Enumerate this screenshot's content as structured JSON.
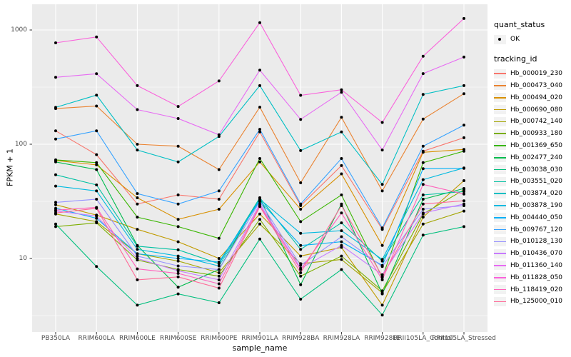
{
  "figure": {
    "y_axis_title": "FPKM + 1",
    "x_axis_title": "sample_name",
    "legend": {
      "quant_status_title": "quant_status",
      "quant_status_item": "OK",
      "tracking_id_title": "tracking_id"
    }
  },
  "colors": {
    "panel_bg": "#EBEBEB",
    "grid": "#FFFFFF",
    "tick_mark": "#333333",
    "tick_text": "#4D4D4D",
    "point": "#000000",
    "legend_key_bg": "#F2F2F2"
  },
  "chart_data": {
    "type": "line",
    "title": "",
    "xlabel": "sample_name",
    "ylabel": "FPKM + 1",
    "y_scale": "log10",
    "ylim": [
      2.3,
      1700
    ],
    "grid": true,
    "legend_position": "right",
    "y_ticks": [
      1000,
      100,
      10
    ],
    "y_tick_labels": [
      "1000",
      "100",
      "10"
    ],
    "y_minor_gridlines": [
      316.2,
      31.62,
      3.162
    ],
    "quant_status": "OK",
    "categories": [
      "PB350LA",
      "RRIM600LA",
      "RRIM600LE",
      "RRIM600SE",
      "RRIM600PE",
      "RRIM901LA",
      "RRIM928BA",
      "RRIM928LA",
      "RRIM928LE",
      "RRII105LA_Control",
      "RRII105LA_Stressed"
    ],
    "series": [
      {
        "name": "Hb_000019_230",
        "color": "#F8766D",
        "values": [
          131,
          81,
          30,
          36,
          33,
          128,
          29,
          65,
          18,
          87,
          114
        ]
      },
      {
        "name": "Hb_000473_040",
        "color": "#EA8331",
        "values": [
          205,
          216,
          100,
          96,
          60,
          211,
          46,
          172,
          39,
          166,
          277
        ]
      },
      {
        "name": "Hb_000494_020",
        "color": "#D89000",
        "values": [
          72,
          66,
          34,
          22,
          27,
          70,
          27,
          55,
          13,
          85,
          90
        ]
      },
      {
        "name": "Hb_000690_080",
        "color": "#C09B00",
        "values": [
          29.5,
          24,
          18,
          14,
          10,
          24.5,
          10.5,
          12.5,
          3.9,
          23,
          48
        ]
      },
      {
        "name": "Hb_000742_140",
        "color": "#A3A500",
        "values": [
          24.5,
          21,
          11,
          9.5,
          7.5,
          20,
          9,
          9.8,
          5,
          20,
          26
        ]
      },
      {
        "name": "Hb_000933_180",
        "color": "#7CAE00",
        "values": [
          19,
          20.5,
          9.7,
          8,
          7,
          22,
          7,
          10.5,
          5.2,
          24.5,
          40
        ]
      },
      {
        "name": "Hb_001369_650",
        "color": "#39B600",
        "values": [
          73,
          69,
          23,
          19,
          15,
          75,
          21,
          36,
          6.8,
          69,
          87
        ]
      },
      {
        "name": "Hb_002477_240",
        "color": "#00BB4E",
        "values": [
          70,
          60,
          13,
          5.6,
          8,
          34,
          5.9,
          30,
          4.9,
          33,
          41
        ]
      },
      {
        "name": "Hb_003038_030",
        "color": "#00BF7D",
        "values": [
          20,
          8.5,
          3.9,
          4.9,
          4.1,
          14.8,
          4.4,
          8,
          3.2,
          16,
          19
        ]
      },
      {
        "name": "Hb_003551_020",
        "color": "#00C1A3",
        "values": [
          54,
          44,
          12.8,
          11.9,
          9,
          34,
          12,
          20.5,
          9.5,
          36,
          38.5
        ]
      },
      {
        "name": "Hb_003874_020",
        "color": "#00BFC4",
        "values": [
          210,
          269,
          89,
          70,
          117,
          326,
          88,
          128,
          44.5,
          273,
          326
        ]
      },
      {
        "name": "Hb_003878_190",
        "color": "#00BAE0",
        "values": [
          43,
          39,
          12,
          10.5,
          8.6,
          33,
          16.6,
          17.5,
          9.8,
          49,
          62
        ]
      },
      {
        "name": "Hb_004440_050",
        "color": "#00B0F6",
        "values": [
          27.5,
          22.5,
          11,
          10,
          9.3,
          32,
          13,
          14,
          8.7,
          61,
          61.5
        ]
      },
      {
        "name": "Hb_009767_120",
        "color": "#35A2FF",
        "values": [
          111,
          131,
          37,
          30,
          39,
          135,
          30,
          75,
          18.5,
          96,
          147
        ]
      },
      {
        "name": "Hb_010128_130",
        "color": "#9590FF",
        "values": [
          31,
          33,
          10.5,
          8.6,
          8,
          31.5,
          8.7,
          15.5,
          8.5,
          27,
          29
        ]
      },
      {
        "name": "Hb_010436_070",
        "color": "#C77CFF",
        "values": [
          26,
          23.5,
          10,
          7.8,
          6.5,
          30,
          8.2,
          13,
          7.2,
          25,
          30
        ]
      },
      {
        "name": "Hb_011360_140",
        "color": "#E76BF3",
        "values": [
          385,
          414,
          201,
          168,
          121,
          445,
          165,
          285,
          89,
          415,
          580
        ]
      },
      {
        "name": "Hb_011828_050",
        "color": "#FA62DB",
        "values": [
          772,
          869,
          326,
          214,
          358,
          1160,
          268,
          300,
          155,
          590,
          1260
        ]
      },
      {
        "name": "Hb_118419_020",
        "color": "#FF62BC",
        "values": [
          26.5,
          28,
          8.1,
          7.4,
          6,
          29,
          8,
          25,
          6.5,
          44.5,
          36.6
        ]
      },
      {
        "name": "Hb_125000_010",
        "color": "#FF6A98",
        "values": [
          25,
          27.5,
          6.5,
          6.9,
          5.5,
          28.5,
          7.5,
          29,
          7,
          30,
          32
        ]
      }
    ]
  }
}
